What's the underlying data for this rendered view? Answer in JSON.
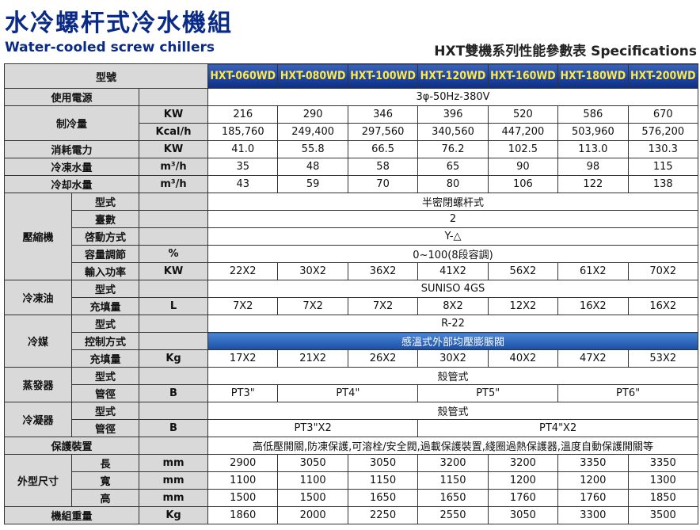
{
  "header": {
    "title_zh": "水冷螺杆式冷水機組",
    "title_en": "Water-cooled screw chillers",
    "subtitle": "HXT雙機系列性能參數表 Specifications"
  },
  "table": {
    "model_label": "型號",
    "models": [
      "HXT-060WD",
      "HXT-080WD",
      "HXT-100WD",
      "HXT-120WD",
      "HXT-160WD",
      "HXT-180WD",
      "HXT-200WD"
    ],
    "groups": [
      {
        "label": "使用電源",
        "rows": [
          {
            "unit": null,
            "values": [
              "3φ-50Hz-380V",
              null,
              null,
              null,
              null,
              null,
              null
            ]
          }
        ]
      },
      {
        "label": "制冷量",
        "rows": [
          {
            "unit": "KW",
            "values": [
              "216",
              "290",
              "346",
              "396",
              "520",
              "586",
              "670"
            ]
          },
          {
            "unit": "Kcal/h",
            "values": [
              "185,760",
              "249,400",
              "297,560",
              "340,560",
              "447,200",
              "503,960",
              "576,200"
            ]
          }
        ]
      },
      {
        "label": "消耗電力",
        "rows": [
          {
            "unit": "KW",
            "values": [
              "41.0",
              "55.8",
              "66.5",
              "76.2",
              "102.5",
              "113.0",
              "130.3"
            ]
          }
        ]
      },
      {
        "label": "冷凍水量",
        "rows": [
          {
            "unit": "m³/h",
            "values": [
              "35",
              "48",
              "58",
              "65",
              "90",
              "98",
              "115"
            ]
          }
        ]
      },
      {
        "label": "冷却水量",
        "rows": [
          {
            "unit": "m³/h",
            "values": [
              "43",
              "59",
              "70",
              "80",
              "106",
              "122",
              "138"
            ]
          }
        ]
      },
      {
        "label": "壓縮機",
        "rows": [
          {
            "item": "型式",
            "unit": null,
            "values": [
              "半密閉螺杆式",
              null,
              null,
              null,
              null,
              null,
              null
            ]
          },
          {
            "item": "臺數",
            "unit": null,
            "values": [
              "2",
              null,
              null,
              null,
              null,
              null,
              null
            ]
          },
          {
            "item": "啓動方式",
            "unit": null,
            "values": [
              "Y-△",
              null,
              null,
              null,
              null,
              null,
              null
            ]
          },
          {
            "item": "容量調節",
            "unit": "%",
            "values": [
              "0~100(8段容調)",
              null,
              null,
              null,
              null,
              null,
              null
            ]
          },
          {
            "item": "輸入功率",
            "unit": "KW",
            "values": [
              "22X2",
              "30X2",
              "36X2",
              "41X2",
              "56X2",
              "61X2",
              "70X2"
            ]
          }
        ]
      },
      {
        "label": "冷凍油",
        "rows": [
          {
            "item": "型式",
            "unit": null,
            "values": [
              "SUNISO 4GS",
              null,
              null,
              null,
              null,
              null,
              null
            ]
          },
          {
            "item": "充填量",
            "unit": "L",
            "values": [
              "7X2",
              "7X2",
              "7X2",
              "8X2",
              "12X2",
              "16X2",
              "16X2"
            ]
          }
        ]
      },
      {
        "label": "冷媒",
        "rows": [
          {
            "item": "型式",
            "unit": null,
            "values": [
              "R-22",
              null,
              null,
              null,
              null,
              null,
              null
            ]
          },
          {
            "item": "控制方式",
            "unit": null,
            "highlight": true,
            "values": [
              "感溫式外部均壓膨脹閥",
              null,
              null,
              null,
              null,
              null,
              null
            ]
          },
          {
            "item": "充填量",
            "unit": "Kg",
            "values": [
              "17X2",
              "21X2",
              "26X2",
              "30X2",
              "40X2",
              "47X2",
              "53X2"
            ]
          }
        ]
      },
      {
        "label": "蒸發器",
        "rows": [
          {
            "item": "型式",
            "unit": null,
            "values": [
              "殼管式",
              null,
              null,
              null,
              null,
              null,
              null
            ]
          },
          {
            "item": "管徑",
            "unit": "B",
            "values": [
              "PT3\"",
              "PT4\"",
              null,
              "PT5\"",
              null,
              "PT6\"",
              null
            ]
          }
        ]
      },
      {
        "label": "冷凝器",
        "rows": [
          {
            "item": "型式",
            "unit": null,
            "values": [
              "殼管式",
              null,
              null,
              null,
              null,
              null,
              null
            ]
          },
          {
            "item": "管徑",
            "unit": "B",
            "values": [
              "PT3\"X2",
              null,
              null,
              "PT4\"X2",
              null,
              null,
              null
            ]
          }
        ]
      },
      {
        "label": "保護裝置",
        "rows": [
          {
            "unit": null,
            "values": [
              "高低壓開關,防凍保護,可溶栓/安全閥,過載保護裝置,綫圈過熱保護器,溫度自動保護開關等",
              null,
              null,
              null,
              null,
              null,
              null
            ]
          }
        ]
      },
      {
        "label": "外型尺寸",
        "rows": [
          {
            "item": "長",
            "unit": "mm",
            "values": [
              "2900",
              "3050",
              "3050",
              "3200",
              "3200",
              "3350",
              "3350"
            ]
          },
          {
            "item": "寬",
            "unit": "mm",
            "values": [
              "1100",
              "1100",
              "1150",
              "1150",
              "1200",
              "1200",
              "1300"
            ]
          },
          {
            "item": "高",
            "unit": "mm",
            "values": [
              "1500",
              "1500",
              "1650",
              "1650",
              "1760",
              "1760",
              "1850"
            ]
          }
        ]
      },
      {
        "label": "機組重量",
        "rows": [
          {
            "unit": "Kg",
            "values": [
              "1860",
              "2000",
              "2250",
              "2550",
              "3050",
              "3300",
              "3500"
            ]
          }
        ]
      }
    ]
  }
}
